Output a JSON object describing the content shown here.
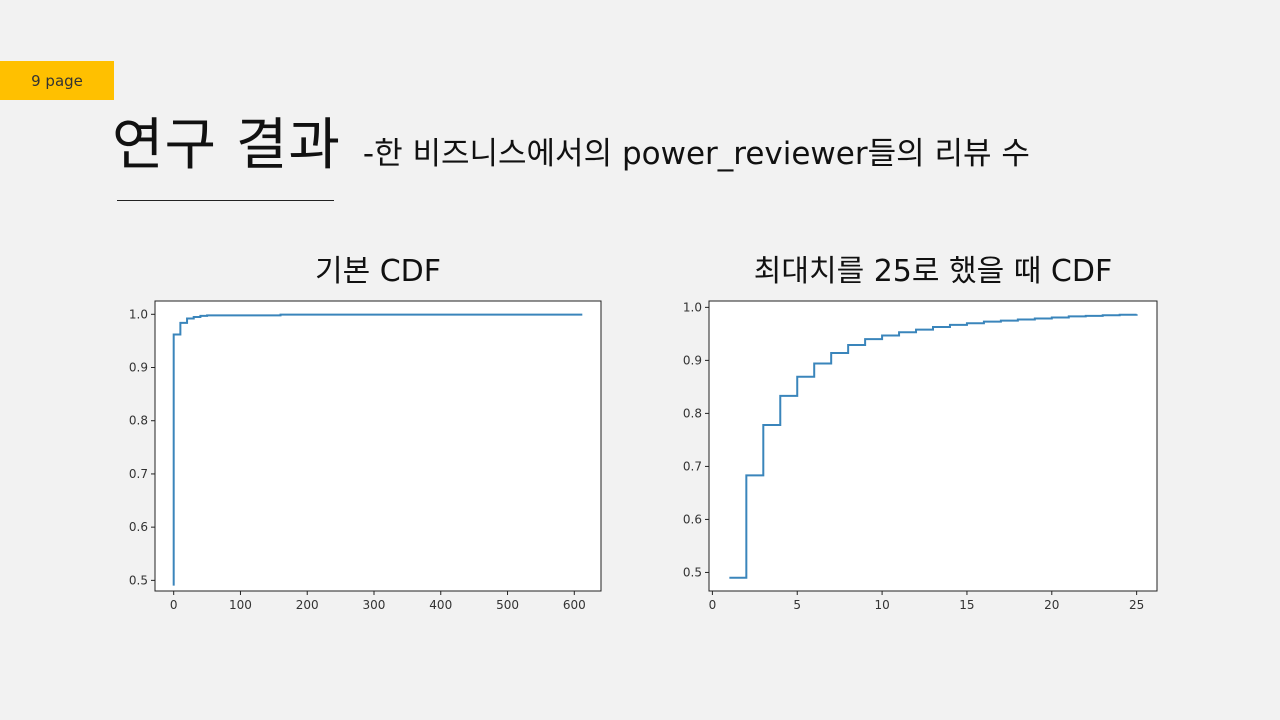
{
  "page_label": "9 page",
  "title": "연구 결과",
  "subtitle": "-한 비즈니스에서의 power_reviewer들의 리뷰 수",
  "colors": {
    "badge": "#ffc000",
    "line": "#3a85bb",
    "background": "#f2f2f2"
  },
  "chart_data": [
    {
      "type": "line",
      "step": true,
      "title": "기본 CDF",
      "xlim": [
        -28,
        640
      ],
      "ylim": [
        0.48,
        1.025
      ],
      "xticks": [
        0,
        100,
        200,
        300,
        400,
        500,
        600
      ],
      "xtick_labels": [
        "0",
        "100",
        "200",
        "300",
        "400",
        "500",
        "600"
      ],
      "yticks": [
        0.5,
        0.6,
        0.7,
        0.8,
        0.9,
        1.0
      ],
      "ytick_labels": [
        "0.5",
        "0.6",
        "0.7",
        "0.8",
        "0.9",
        "1.0"
      ],
      "series": [
        {
          "x": [
            0,
            0,
            10,
            10,
            20,
            20,
            30,
            30,
            40,
            40,
            50,
            50,
            160,
            160,
            612
          ],
          "y": [
            0.49,
            0.962,
            0.962,
            0.984,
            0.984,
            0.992,
            0.992,
            0.995,
            0.995,
            0.997,
            0.997,
            0.998,
            0.998,
            0.9995,
            0.9995
          ]
        }
      ]
    },
    {
      "type": "line",
      "step": true,
      "title": "최대치를 25로 했을 때 CDF",
      "xlim": [
        -0.2,
        26.2
      ],
      "ylim": [
        0.465,
        1.012
      ],
      "xticks": [
        0,
        5,
        10,
        15,
        20,
        25
      ],
      "xtick_labels": [
        "0",
        "5",
        "10",
        "15",
        "20",
        "25"
      ],
      "yticks": [
        0.5,
        0.6,
        0.7,
        0.8,
        0.9,
        1.0
      ],
      "ytick_labels": [
        "0.5",
        "0.6",
        "0.7",
        "0.8",
        "0.9",
        "1.0"
      ],
      "series": [
        {
          "x": [
            1,
            2,
            3,
            4,
            5,
            6,
            7,
            8,
            9,
            10,
            11,
            12,
            13,
            14,
            15,
            16,
            17,
            18,
            19,
            20,
            21,
            22,
            23,
            24,
            25
          ],
          "y": [
            0.49,
            0.683,
            0.778,
            0.833,
            0.869,
            0.894,
            0.914,
            0.929,
            0.94,
            0.947,
            0.953,
            0.958,
            0.963,
            0.967,
            0.97,
            0.973,
            0.975,
            0.977,
            0.979,
            0.981,
            0.983,
            0.984,
            0.985,
            0.986,
            0.987
          ]
        }
      ]
    }
  ]
}
